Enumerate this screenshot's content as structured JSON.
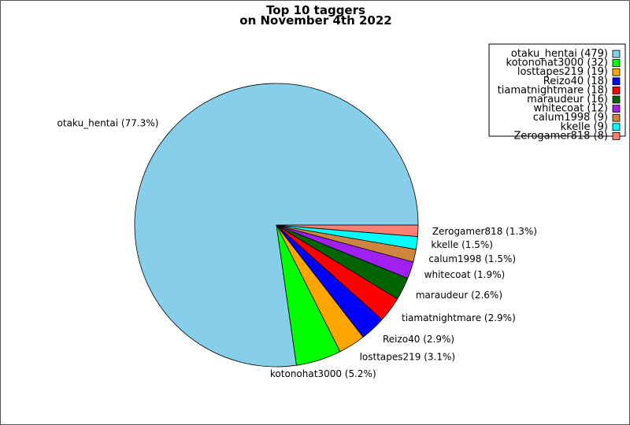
{
  "chart_data": {
    "type": "pie",
    "title": [
      "Top 10 taggers",
      "on November 4th 2022"
    ],
    "start_angle_deg": 0,
    "direction": "counterclockwise",
    "slices": [
      {
        "name": "otaku_hentai",
        "value": 479,
        "percent_label": "otaku_hentai (77.3%)",
        "legend_label": "otaku_hentai (479)",
        "color": "#87CEEB"
      },
      {
        "name": "kotonohat3000",
        "value": 32,
        "percent_label": "kotonohat3000 (5.2%)",
        "legend_label": "kotonohat3000 (32)",
        "color": "#00FF00"
      },
      {
        "name": "losttapes219",
        "value": 19,
        "percent_label": "losttapes219 (3.1%)",
        "legend_label": "losttapes219 (19)",
        "color": "#FFA500"
      },
      {
        "name": "Reizo40",
        "value": 18,
        "percent_label": "Reizo40 (2.9%)",
        "legend_label": "Reizo40 (18)",
        "color": "#0000FF"
      },
      {
        "name": "tiamatnightmare",
        "value": 18,
        "percent_label": "tiamatnightmare (2.9%)",
        "legend_label": "tiamatnightmare (18)",
        "color": "#FF0000"
      },
      {
        "name": "maraudeur",
        "value": 16,
        "percent_label": "maraudeur (2.6%)",
        "legend_label": "maraudeur (16)",
        "color": "#006400"
      },
      {
        "name": "whitecoat",
        "value": 12,
        "percent_label": "whitecoat (1.9%)",
        "legend_label": "whitecoat (12)",
        "color": "#A020F0"
      },
      {
        "name": "calum1998",
        "value": 9,
        "percent_label": "calum1998 (1.5%)",
        "legend_label": "calum1998 (9)",
        "color": "#CD853F"
      },
      {
        "name": "kkelle",
        "value": 9,
        "percent_label": "kkelle (1.5%)",
        "legend_label": "kkelle (9)",
        "color": "#00FFFF"
      },
      {
        "name": "Zerogamer818",
        "value": 8,
        "percent_label": "Zerogamer818 (1.3%)",
        "legend_label": "Zerogamer818 (8)",
        "color": "#FA8072"
      }
    ],
    "legend_position": "top-right"
  }
}
